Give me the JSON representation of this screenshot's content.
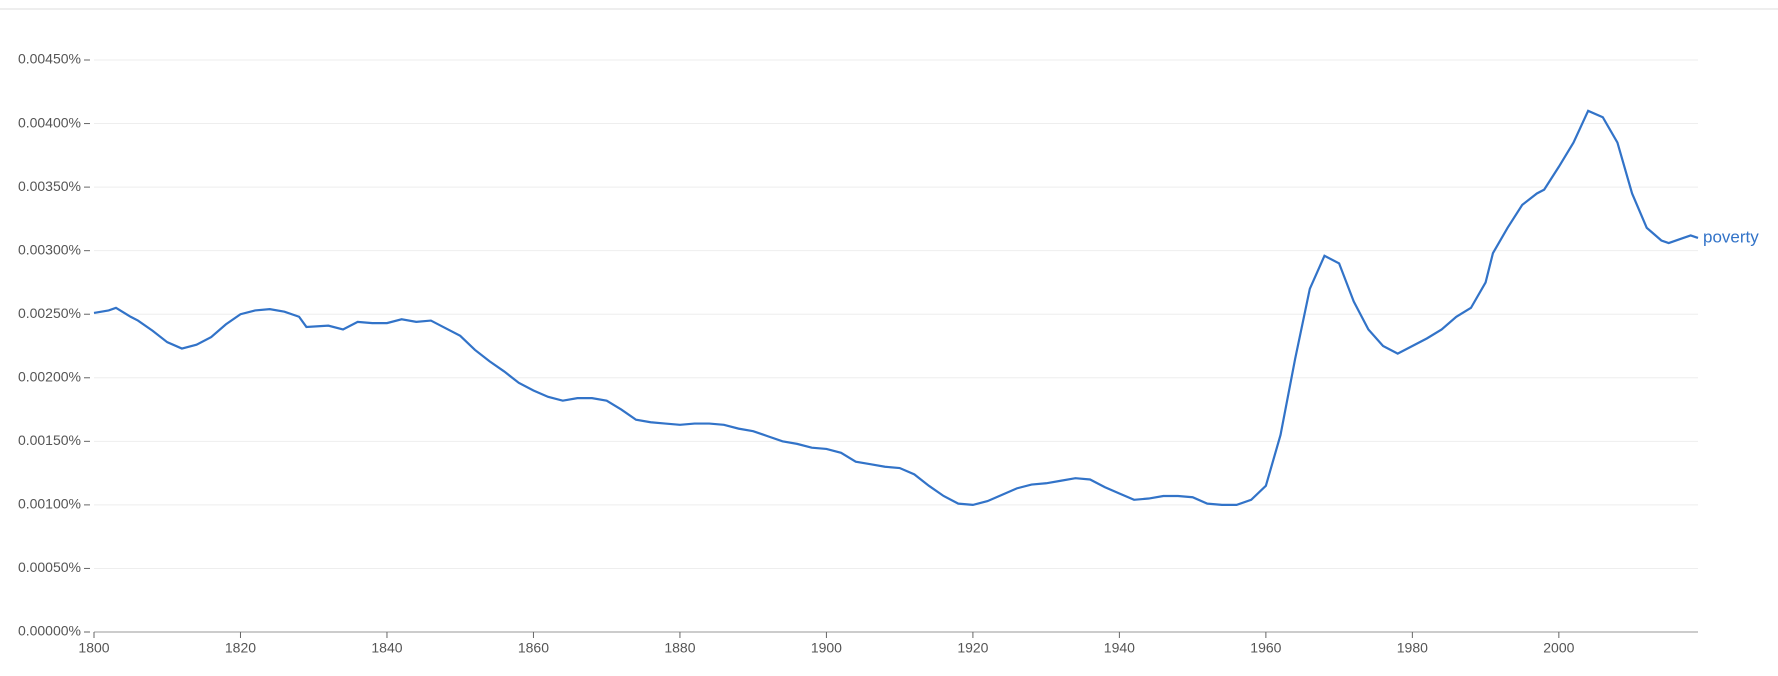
{
  "chart_data": {
    "type": "line",
    "x": [
      1800,
      1802,
      1803,
      1805,
      1806,
      1808,
      1810,
      1812,
      1814,
      1816,
      1818,
      1820,
      1822,
      1824,
      1826,
      1828,
      1829,
      1832,
      1834,
      1836,
      1838,
      1840,
      1842,
      1844,
      1846,
      1848,
      1850,
      1852,
      1854,
      1856,
      1858,
      1860,
      1862,
      1864,
      1866,
      1868,
      1870,
      1872,
      1874,
      1876,
      1878,
      1880,
      1882,
      1884,
      1886,
      1888,
      1890,
      1892,
      1894,
      1896,
      1898,
      1900,
      1902,
      1904,
      1906,
      1908,
      1910,
      1912,
      1914,
      1916,
      1918,
      1920,
      1922,
      1924,
      1926,
      1928,
      1930,
      1932,
      1934,
      1936,
      1938,
      1940,
      1942,
      1944,
      1946,
      1948,
      1950,
      1952,
      1954,
      1956,
      1958,
      1960,
      1962,
      1964,
      1966,
      1968,
      1970,
      1972,
      1974,
      1976,
      1978,
      1980,
      1982,
      1984,
      1986,
      1988,
      1990,
      1991,
      1993,
      1995,
      1997,
      1998,
      2000,
      2002,
      2004,
      2006,
      2008,
      2010,
      2012,
      2014,
      2015,
      2017,
      2018,
      2019
    ],
    "series": [
      {
        "name": "poverty",
        "color": "#3273c8",
        "values": [
          0.00251,
          0.00253,
          0.00255,
          0.00248,
          0.00245,
          0.00237,
          0.00228,
          0.00223,
          0.00226,
          0.00232,
          0.00242,
          0.0025,
          0.00253,
          0.00254,
          0.00252,
          0.00248,
          0.0024,
          0.00241,
          0.00238,
          0.00244,
          0.00243,
          0.00243,
          0.00246,
          0.00244,
          0.00245,
          0.00239,
          0.00233,
          0.00222,
          0.00213,
          0.00205,
          0.00196,
          0.0019,
          0.00185,
          0.00182,
          0.00184,
          0.00184,
          0.00182,
          0.00175,
          0.00167,
          0.00165,
          0.00164,
          0.00163,
          0.00164,
          0.00164,
          0.00163,
          0.0016,
          0.00158,
          0.00154,
          0.0015,
          0.00148,
          0.00145,
          0.00144,
          0.00141,
          0.00134,
          0.00132,
          0.0013,
          0.00129,
          0.00124,
          0.00115,
          0.00107,
          0.00101,
          0.001,
          0.00103,
          0.00108,
          0.00113,
          0.00116,
          0.00117,
          0.00119,
          0.00121,
          0.0012,
          0.00114,
          0.00109,
          0.00104,
          0.00105,
          0.00107,
          0.00107,
          0.00106,
          0.00101,
          0.001,
          0.001,
          0.00104,
          0.00115,
          0.00155,
          0.00215,
          0.0027,
          0.00296,
          0.0029,
          0.0026,
          0.00238,
          0.00225,
          0.00219,
          0.00225,
          0.00231,
          0.00238,
          0.00248,
          0.00255,
          0.00275,
          0.00298,
          0.00318,
          0.00336,
          0.00345,
          0.00348,
          0.00366,
          0.00385,
          0.0041,
          0.00405,
          0.00385,
          0.00345,
          0.00318,
          0.00308,
          0.00306,
          0.0031,
          0.00312,
          0.0031
        ]
      }
    ],
    "xlim": [
      1800,
      2019
    ],
    "xticks": [
      1800,
      1820,
      1840,
      1860,
      1880,
      1900,
      1920,
      1940,
      1960,
      1980,
      2000
    ],
    "ylim": [
      0,
      0.0045
    ],
    "yticks": [
      {
        "value": 0,
        "label": "0.00000%"
      },
      {
        "value": 0.0005,
        "label": "0.00050%"
      },
      {
        "value": 0.001,
        "label": "0.00100%"
      },
      {
        "value": 0.0015,
        "label": "0.00150%"
      },
      {
        "value": 0.002,
        "label": "0.00200%"
      },
      {
        "value": 0.0025,
        "label": "0.00250%"
      },
      {
        "value": 0.003,
        "label": "0.00300%"
      },
      {
        "value": 0.0035,
        "label": "0.00350%"
      },
      {
        "value": 0.004,
        "label": "0.00400%"
      },
      {
        "value": 0.0045,
        "label": "0.00450%"
      }
    ],
    "grid": true
  }
}
